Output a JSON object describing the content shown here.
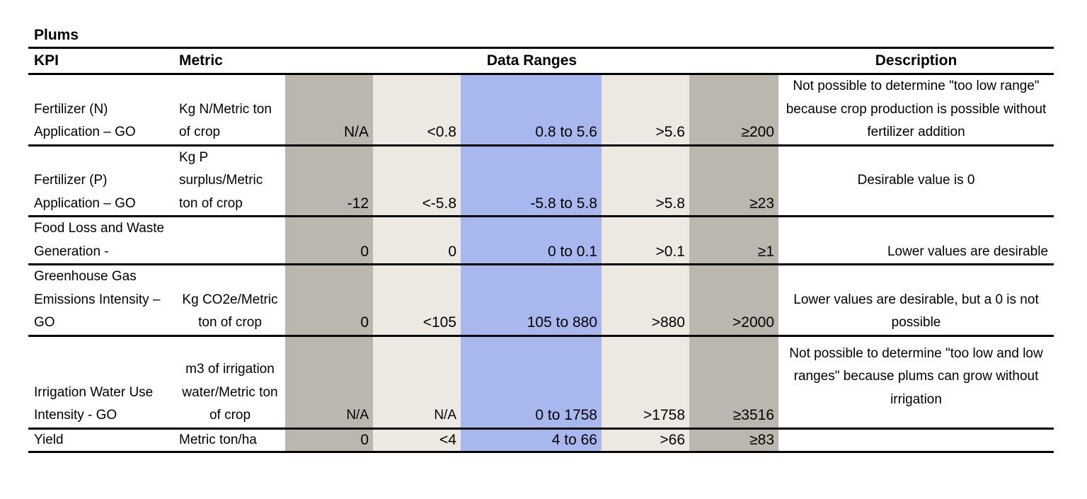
{
  "title": "Plums",
  "headers": {
    "kpi": "KPI",
    "metric": "Metric",
    "data_ranges": "Data Ranges",
    "description": "Description"
  },
  "range_colors": {
    "outer": "#bbb7ae",
    "inner": "#eee8e3",
    "target": "#a9b7ef"
  },
  "rows": [
    {
      "kpi": "Fertilizer (N) Application – GO",
      "metric": "Kg N/Metric ton of crop",
      "ranges": [
        "N/A",
        "<0.8",
        "0.8 to 5.6",
        ">5.6",
        "≥200"
      ],
      "description": "Not possible to determine \"too low range\" because crop production is possible without fertilizer addition"
    },
    {
      "kpi": "Fertilizer (P) Application – GO",
      "metric": "Kg P surplus/Metric ton of crop",
      "ranges": [
        "-12",
        "<-5.8",
        "-5.8 to 5.8",
        ">5.8",
        "≥23"
      ],
      "description": "Desirable value is 0"
    },
    {
      "kpi": "Food Loss and Waste Generation -",
      "metric": "",
      "ranges": [
        "0",
        "0",
        "0 to 0.1",
        ">0.1",
        "≥1"
      ],
      "description": "Lower values are desirable"
    },
    {
      "kpi": "Greenhouse Gas Emissions Intensity – GO",
      "metric": "Kg CO2e/Metric ton of crop",
      "ranges": [
        "0",
        "<105",
        "105 to 880",
        ">880",
        ">2000"
      ],
      "description": "Lower values are desirable, but a 0 is not possible"
    },
    {
      "kpi": "Irrigation Water Use Intensity - GO",
      "metric": "m3 of irrigation water/Metric ton of crop",
      "ranges": [
        "N/A",
        "N/A",
        "0 to 1758",
        ">1758",
        "≥3516"
      ],
      "description": "Not possible to determine \"too low and low ranges\" because plums can grow without irrigation"
    },
    {
      "kpi": "Yield",
      "metric": "Metric ton/ha",
      "ranges": [
        "0",
        "<4",
        "4  to 66",
        ">66",
        "≥83"
      ],
      "description": ""
    }
  ]
}
